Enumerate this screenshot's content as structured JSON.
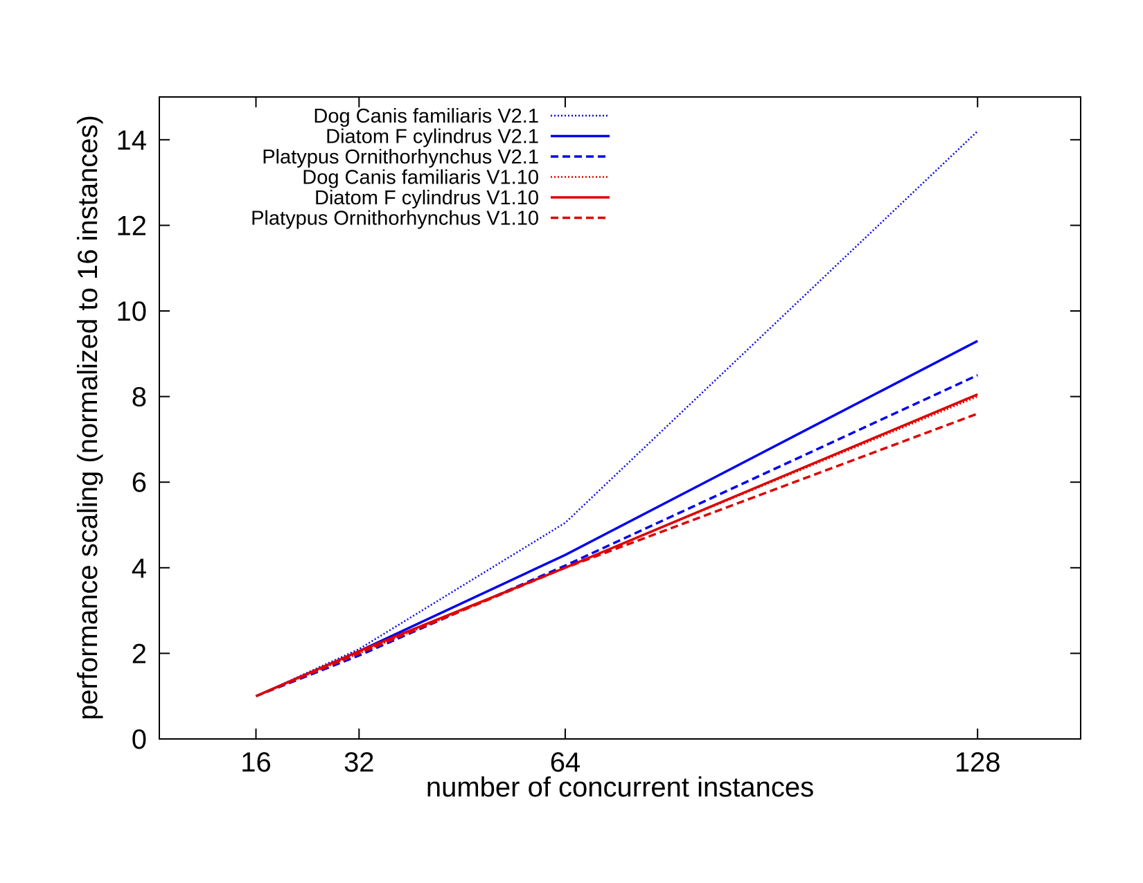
{
  "chart_data": {
    "type": "line",
    "title": "",
    "xlabel": "number of concurrent instances",
    "ylabel": "performance scaling (normalized to 16 instances)",
    "x_ticks": [
      16,
      32,
      64,
      128
    ],
    "xlim": [
      1,
      144
    ],
    "ylim": [
      0,
      15
    ],
    "y_ticks": [
      0,
      2,
      4,
      6,
      8,
      10,
      12,
      14
    ],
    "grid": false,
    "legend_position": "top-left",
    "x": [
      16,
      32,
      64,
      128
    ],
    "series": [
      {
        "name": "Dog Canis familiaris V2.1",
        "color": "#0000ee",
        "style": "dotted",
        "values": [
          1.0,
          2.1,
          5.05,
          14.2
        ]
      },
      {
        "name": "Diatom F cylindrus V2.1",
        "color": "#0000ee",
        "style": "solid",
        "values": [
          1.0,
          2.05,
          4.3,
          9.3
        ]
      },
      {
        "name": "Platypus Ornithorhynchus V2.1",
        "color": "#0000ee",
        "style": "dashed",
        "values": [
          1.0,
          1.95,
          4.05,
          8.5
        ]
      },
      {
        "name": "Dog Canis familiaris V1.10",
        "color": "#dd0000",
        "style": "dotted",
        "values": [
          1.0,
          2.0,
          4.0,
          8.0
        ]
      },
      {
        "name": "Diatom F cylindrus V1.10",
        "color": "#dd0000",
        "style": "solid",
        "values": [
          1.0,
          2.05,
          4.0,
          8.05
        ]
      },
      {
        "name": "Platypus Ornithorhynchus V1.10",
        "color": "#dd0000",
        "style": "dashed",
        "values": [
          1.0,
          2.0,
          4.0,
          7.6
        ]
      }
    ]
  }
}
